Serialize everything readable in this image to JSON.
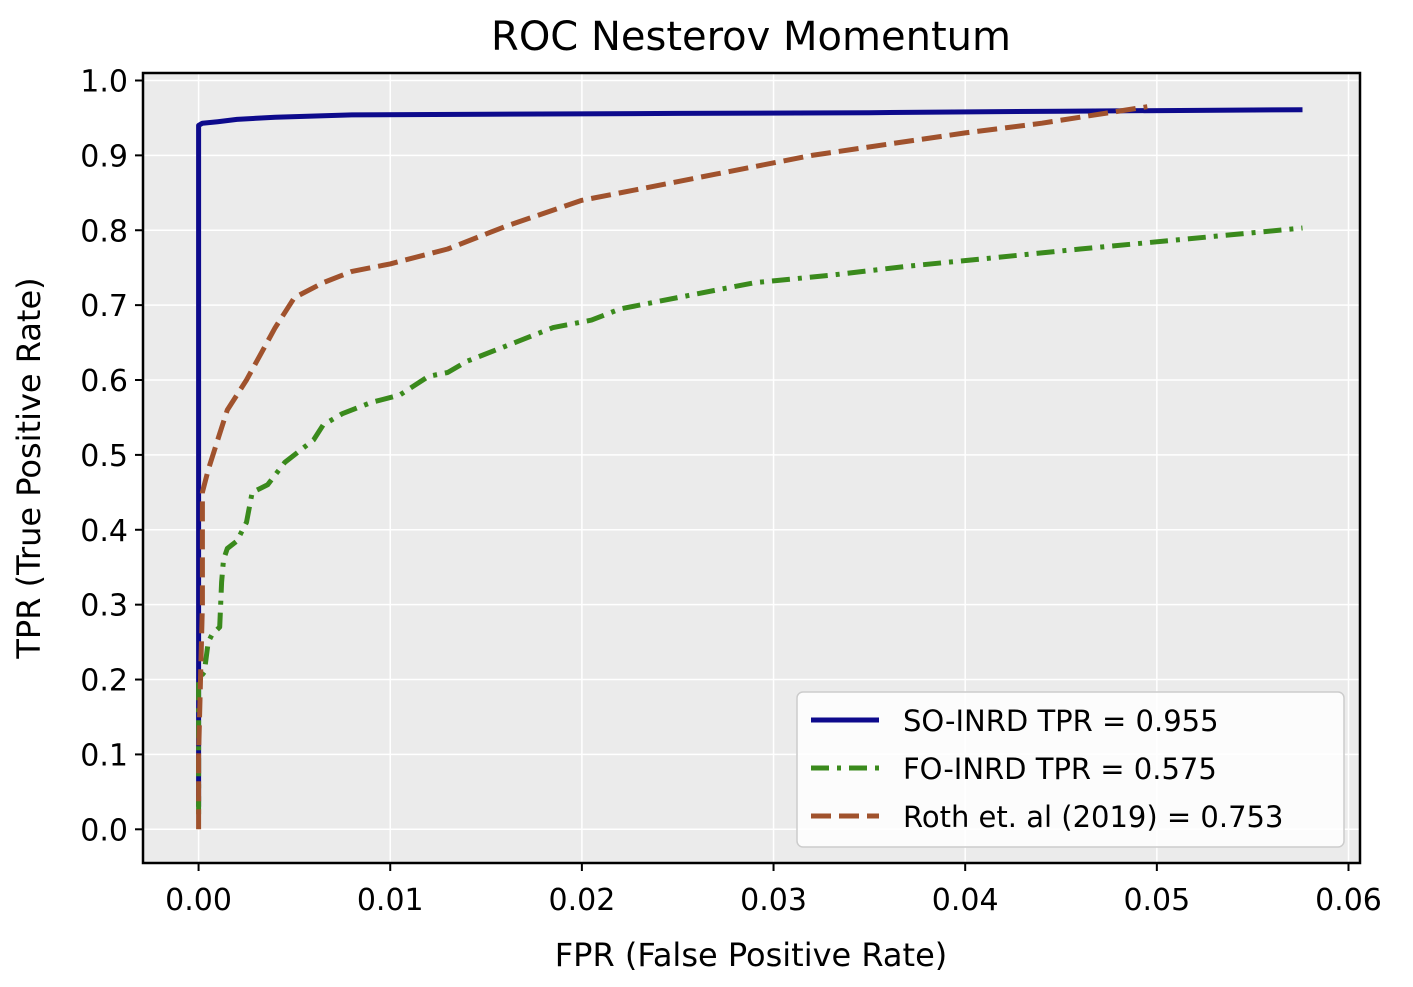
{
  "chart_data": {
    "type": "line",
    "title": "ROC Nesterov Momentum",
    "xlabel": "FPR (False Positive Rate)",
    "ylabel": "TPR (True Positive Rate)",
    "xlim": [
      -0.0029,
      0.0606
    ],
    "ylim": [
      -0.045,
      1.01
    ],
    "grid": true,
    "legend_position": "lower right",
    "x_ticks": [
      0.0,
      0.01,
      0.02,
      0.03,
      0.04,
      0.05,
      0.06
    ],
    "x_tick_labels": [
      "0.00",
      "0.01",
      "0.02",
      "0.03",
      "0.04",
      "0.05",
      "0.06"
    ],
    "y_ticks": [
      0.0,
      0.1,
      0.2,
      0.3,
      0.4,
      0.5,
      0.6,
      0.7,
      0.8,
      0.9,
      1.0
    ],
    "y_tick_labels": [
      "0.0",
      "0.1",
      "0.2",
      "0.3",
      "0.4",
      "0.5",
      "0.6",
      "0.7",
      "0.8",
      "0.9",
      "1.0"
    ],
    "series": [
      {
        "name": "SO-INRD TPR = 0.955",
        "color": "#0d0a8c",
        "style": "solid",
        "points": [
          [
            0.0,
            0.03
          ],
          [
            0.0,
            0.5
          ],
          [
            0.0,
            0.94
          ],
          [
            0.0002,
            0.943
          ],
          [
            0.001,
            0.945
          ],
          [
            0.002,
            0.948
          ],
          [
            0.004,
            0.951
          ],
          [
            0.008,
            0.954
          ],
          [
            0.015,
            0.955
          ],
          [
            0.025,
            0.956
          ],
          [
            0.035,
            0.957
          ],
          [
            0.045,
            0.959
          ],
          [
            0.0576,
            0.961
          ]
        ]
      },
      {
        "name": "FO-INRD TPR = 0.575",
        "color": "#3a8a1c",
        "style": "dashdot",
        "points": [
          [
            0.0,
            0.02
          ],
          [
            0.0,
            0.2
          ],
          [
            0.0003,
            0.21
          ],
          [
            0.0005,
            0.25
          ],
          [
            0.0007,
            0.26
          ],
          [
            0.0011,
            0.27
          ],
          [
            0.0012,
            0.33
          ],
          [
            0.0013,
            0.36
          ],
          [
            0.0015,
            0.375
          ],
          [
            0.002,
            0.385
          ],
          [
            0.0025,
            0.41
          ],
          [
            0.0028,
            0.45
          ],
          [
            0.0032,
            0.455
          ],
          [
            0.0036,
            0.46
          ],
          [
            0.0045,
            0.49
          ],
          [
            0.0055,
            0.51
          ],
          [
            0.006,
            0.52
          ],
          [
            0.0065,
            0.54
          ],
          [
            0.0075,
            0.555
          ],
          [
            0.009,
            0.57
          ],
          [
            0.0105,
            0.58
          ],
          [
            0.012,
            0.605
          ],
          [
            0.013,
            0.61
          ],
          [
            0.014,
            0.625
          ],
          [
            0.0155,
            0.64
          ],
          [
            0.017,
            0.655
          ],
          [
            0.0185,
            0.67
          ],
          [
            0.0205,
            0.68
          ],
          [
            0.022,
            0.695
          ],
          [
            0.025,
            0.71
          ],
          [
            0.029,
            0.73
          ],
          [
            0.033,
            0.74
          ],
          [
            0.037,
            0.752
          ],
          [
            0.041,
            0.762
          ],
          [
            0.046,
            0.775
          ],
          [
            0.051,
            0.787
          ],
          [
            0.0576,
            0.803
          ]
        ]
      },
      {
        "name": "Roth et. al (2019) = 0.753",
        "color": "#a0522d",
        "style": "dashed",
        "points": [
          [
            0.0,
            0.0
          ],
          [
            0.0,
            0.1
          ],
          [
            0.0001,
            0.2
          ],
          [
            0.0002,
            0.3
          ],
          [
            0.0002,
            0.45
          ],
          [
            0.0005,
            0.48
          ],
          [
            0.001,
            0.52
          ],
          [
            0.0015,
            0.56
          ],
          [
            0.0025,
            0.6
          ],
          [
            0.004,
            0.67
          ],
          [
            0.005,
            0.71
          ],
          [
            0.0065,
            0.73
          ],
          [
            0.008,
            0.745
          ],
          [
            0.01,
            0.755
          ],
          [
            0.013,
            0.775
          ],
          [
            0.016,
            0.805
          ],
          [
            0.02,
            0.84
          ],
          [
            0.023,
            0.855
          ],
          [
            0.027,
            0.875
          ],
          [
            0.032,
            0.9
          ],
          [
            0.036,
            0.915
          ],
          [
            0.04,
            0.93
          ],
          [
            0.044,
            0.943
          ],
          [
            0.0495,
            0.965
          ]
        ]
      }
    ]
  }
}
